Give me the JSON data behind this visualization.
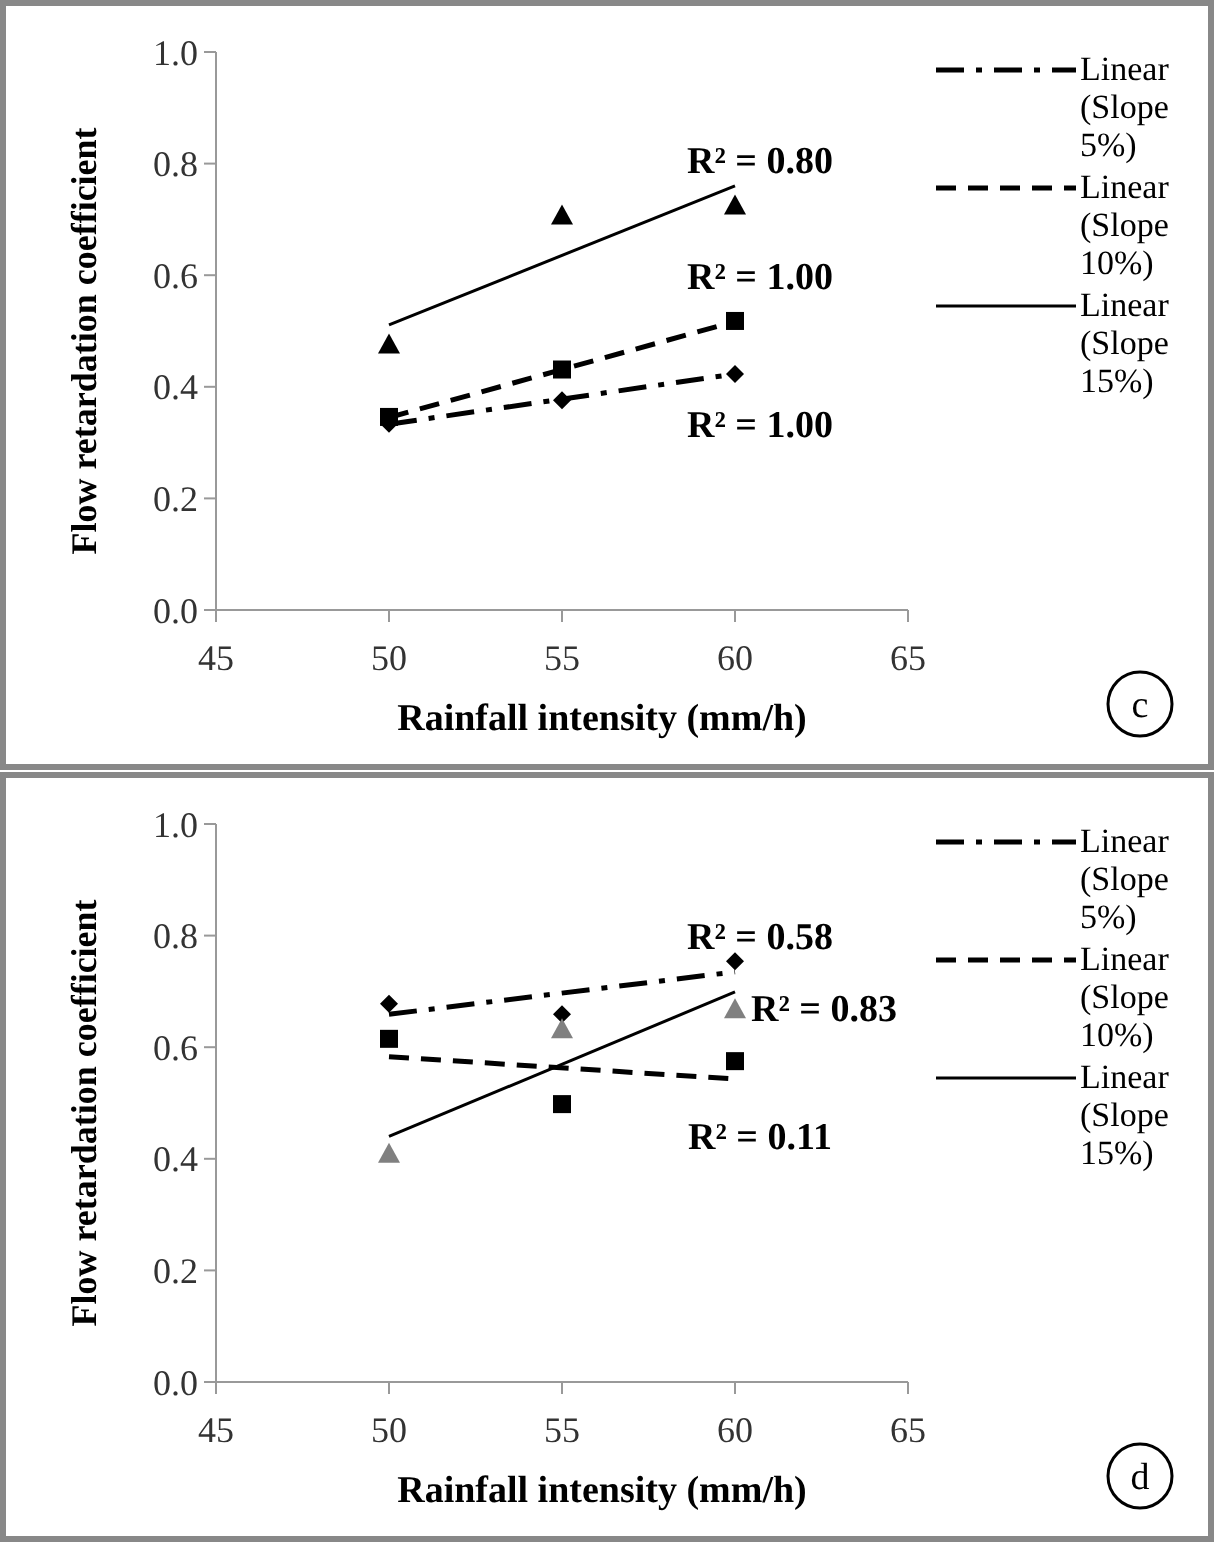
{
  "chart_data": [
    {
      "type": "scatter",
      "xlabel": "Rainfall intensity (mm/h)",
      "ylabel": "Flow retardation coefficient",
      "xlim": [
        45,
        65
      ],
      "xticks": [
        45,
        50,
        55,
        60,
        65
      ],
      "ylim": [
        0,
        1
      ],
      "yticks": [
        {
          "value": 0,
          "label": "0.0"
        },
        {
          "value": 0.2,
          "label": "0.2"
        },
        {
          "value": 0.4,
          "label": "0.4"
        },
        {
          "value": 0.6,
          "label": "0.6"
        },
        {
          "value": 0.8,
          "label": "0.8"
        },
        {
          "value": 1,
          "label": "1.0"
        }
      ],
      "grid": false,
      "legend": "right",
      "series": [
        {
          "marker": "diamond",
          "color": "#000000",
          "x": [
            50,
            55,
            60
          ],
          "values": [
            0.334,
            0.376,
            0.423
          ]
        },
        {
          "marker": "square",
          "color": "#000000",
          "x": [
            50,
            55,
            60
          ],
          "values": [
            0.346,
            0.431,
            0.518
          ]
        },
        {
          "marker": "triangle",
          "color": "#000000",
          "x": [
            50,
            55,
            60
          ],
          "values": [
            0.476,
            0.707,
            0.725
          ]
        },
        {
          "type": "line",
          "name": "Linear (Slope 5%)",
          "line_style": "dashdot",
          "color": "#000000",
          "x": [
            50,
            60
          ],
          "values": [
            0.333,
            0.423
          ]
        },
        {
          "type": "line",
          "name": "Linear (Slope 10%)",
          "line_style": "dashed",
          "color": "#000000",
          "x": [
            50,
            60
          ],
          "values": [
            0.345,
            0.517
          ]
        },
        {
          "type": "line",
          "name": "Linear (Slope 15%)",
          "line_style": "solid",
          "color": "#000000",
          "x": [
            50,
            60
          ],
          "values": [
            0.511,
            0.76
          ]
        }
      ],
      "annotations": [
        "R² = 0.80",
        "R² = 1.00",
        "R² = 1.00",
        "c"
      ]
    },
    {
      "type": "scatter",
      "xlabel": "Rainfall intensity (mm/h)",
      "ylabel": "Flow retardation coefficient",
      "xlim": [
        45,
        65
      ],
      "xticks": [
        45,
        50,
        55,
        60,
        65
      ],
      "ylim": [
        0,
        1
      ],
      "yticks": [
        {
          "value": 0,
          "label": "0.0"
        },
        {
          "value": 0.2,
          "label": "0.2"
        },
        {
          "value": 0.4,
          "label": "0.4"
        },
        {
          "value": 0.6,
          "label": "0.6"
        },
        {
          "value": 0.8,
          "label": "0.8"
        },
        {
          "value": 1,
          "label": "1.0"
        }
      ],
      "grid": false,
      "legend": "right",
      "series": [
        {
          "marker": "diamond",
          "color": "#000000",
          "x": [
            50,
            55,
            60
          ],
          "values": [
            0.678,
            0.659,
            0.754
          ]
        },
        {
          "marker": "square",
          "color": "#000000",
          "x": [
            50,
            55,
            60
          ],
          "values": [
            0.615,
            0.498,
            0.575
          ]
        },
        {
          "marker": "triangle",
          "color": "#808080",
          "x": [
            50,
            55,
            60
          ],
          "values": [
            0.409,
            0.632,
            0.668
          ]
        },
        {
          "type": "line",
          "name": "Linear (Slope 5%)",
          "line_style": "dashdot",
          "color": "#000000",
          "x": [
            50,
            60
          ],
          "values": [
            0.659,
            0.735
          ]
        },
        {
          "type": "line",
          "name": "Linear (Slope 10%)",
          "line_style": "dashed",
          "color": "#000000",
          "x": [
            50,
            60
          ],
          "values": [
            0.583,
            0.543
          ]
        },
        {
          "type": "line",
          "name": "Linear (Slope 15%)",
          "line_style": "solid",
          "color": "#000000",
          "x": [
            50,
            60
          ],
          "values": [
            0.44,
            0.699
          ]
        }
      ],
      "annotations": [
        "R² = 0.58",
        "R² = 0.83",
        "R² = 0.11",
        "d"
      ]
    }
  ]
}
